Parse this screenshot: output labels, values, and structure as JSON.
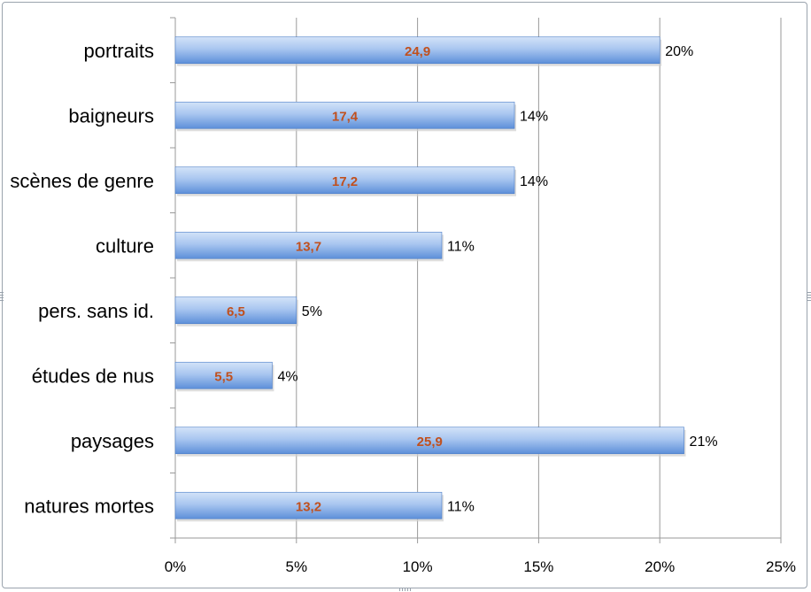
{
  "chart_data": {
    "type": "bar",
    "orientation": "horizontal",
    "categories": [
      "portraits",
      "baigneurs",
      "scènes de genre",
      "culture",
      "pers. sans id.",
      "études de nus",
      "paysages",
      "natures mortes"
    ],
    "values": [
      24.9,
      17.4,
      17.2,
      13.7,
      6.5,
      5.5,
      25.9,
      13.2
    ],
    "inner_labels": [
      "24,9",
      "17,4",
      "17,2",
      "13,7",
      "6,5",
      "5,5",
      "25,9",
      "13,2"
    ],
    "percent_values": [
      20,
      14,
      14,
      11,
      5,
      4,
      21,
      11
    ],
    "percent_labels": [
      "20%",
      "14%",
      "14%",
      "11%",
      "5%",
      "4%",
      "21%",
      "11%"
    ],
    "x_ticks": [
      "0%",
      "5%",
      "10%",
      "15%",
      "20%",
      "25%"
    ],
    "x_tick_values": [
      0,
      5,
      10,
      15,
      20,
      25
    ],
    "xlim": [
      0,
      25
    ],
    "title": "",
    "xlabel": "",
    "ylabel": "",
    "grid": true,
    "legend": "none",
    "colors": {
      "bar_light": "#c9dcf6",
      "bar_dark": "#5d8fd9",
      "bar_edge": "#4a7cc7",
      "inner_label": "#c0501e",
      "grid": "#9a9a9a",
      "text": "#000000"
    }
  }
}
